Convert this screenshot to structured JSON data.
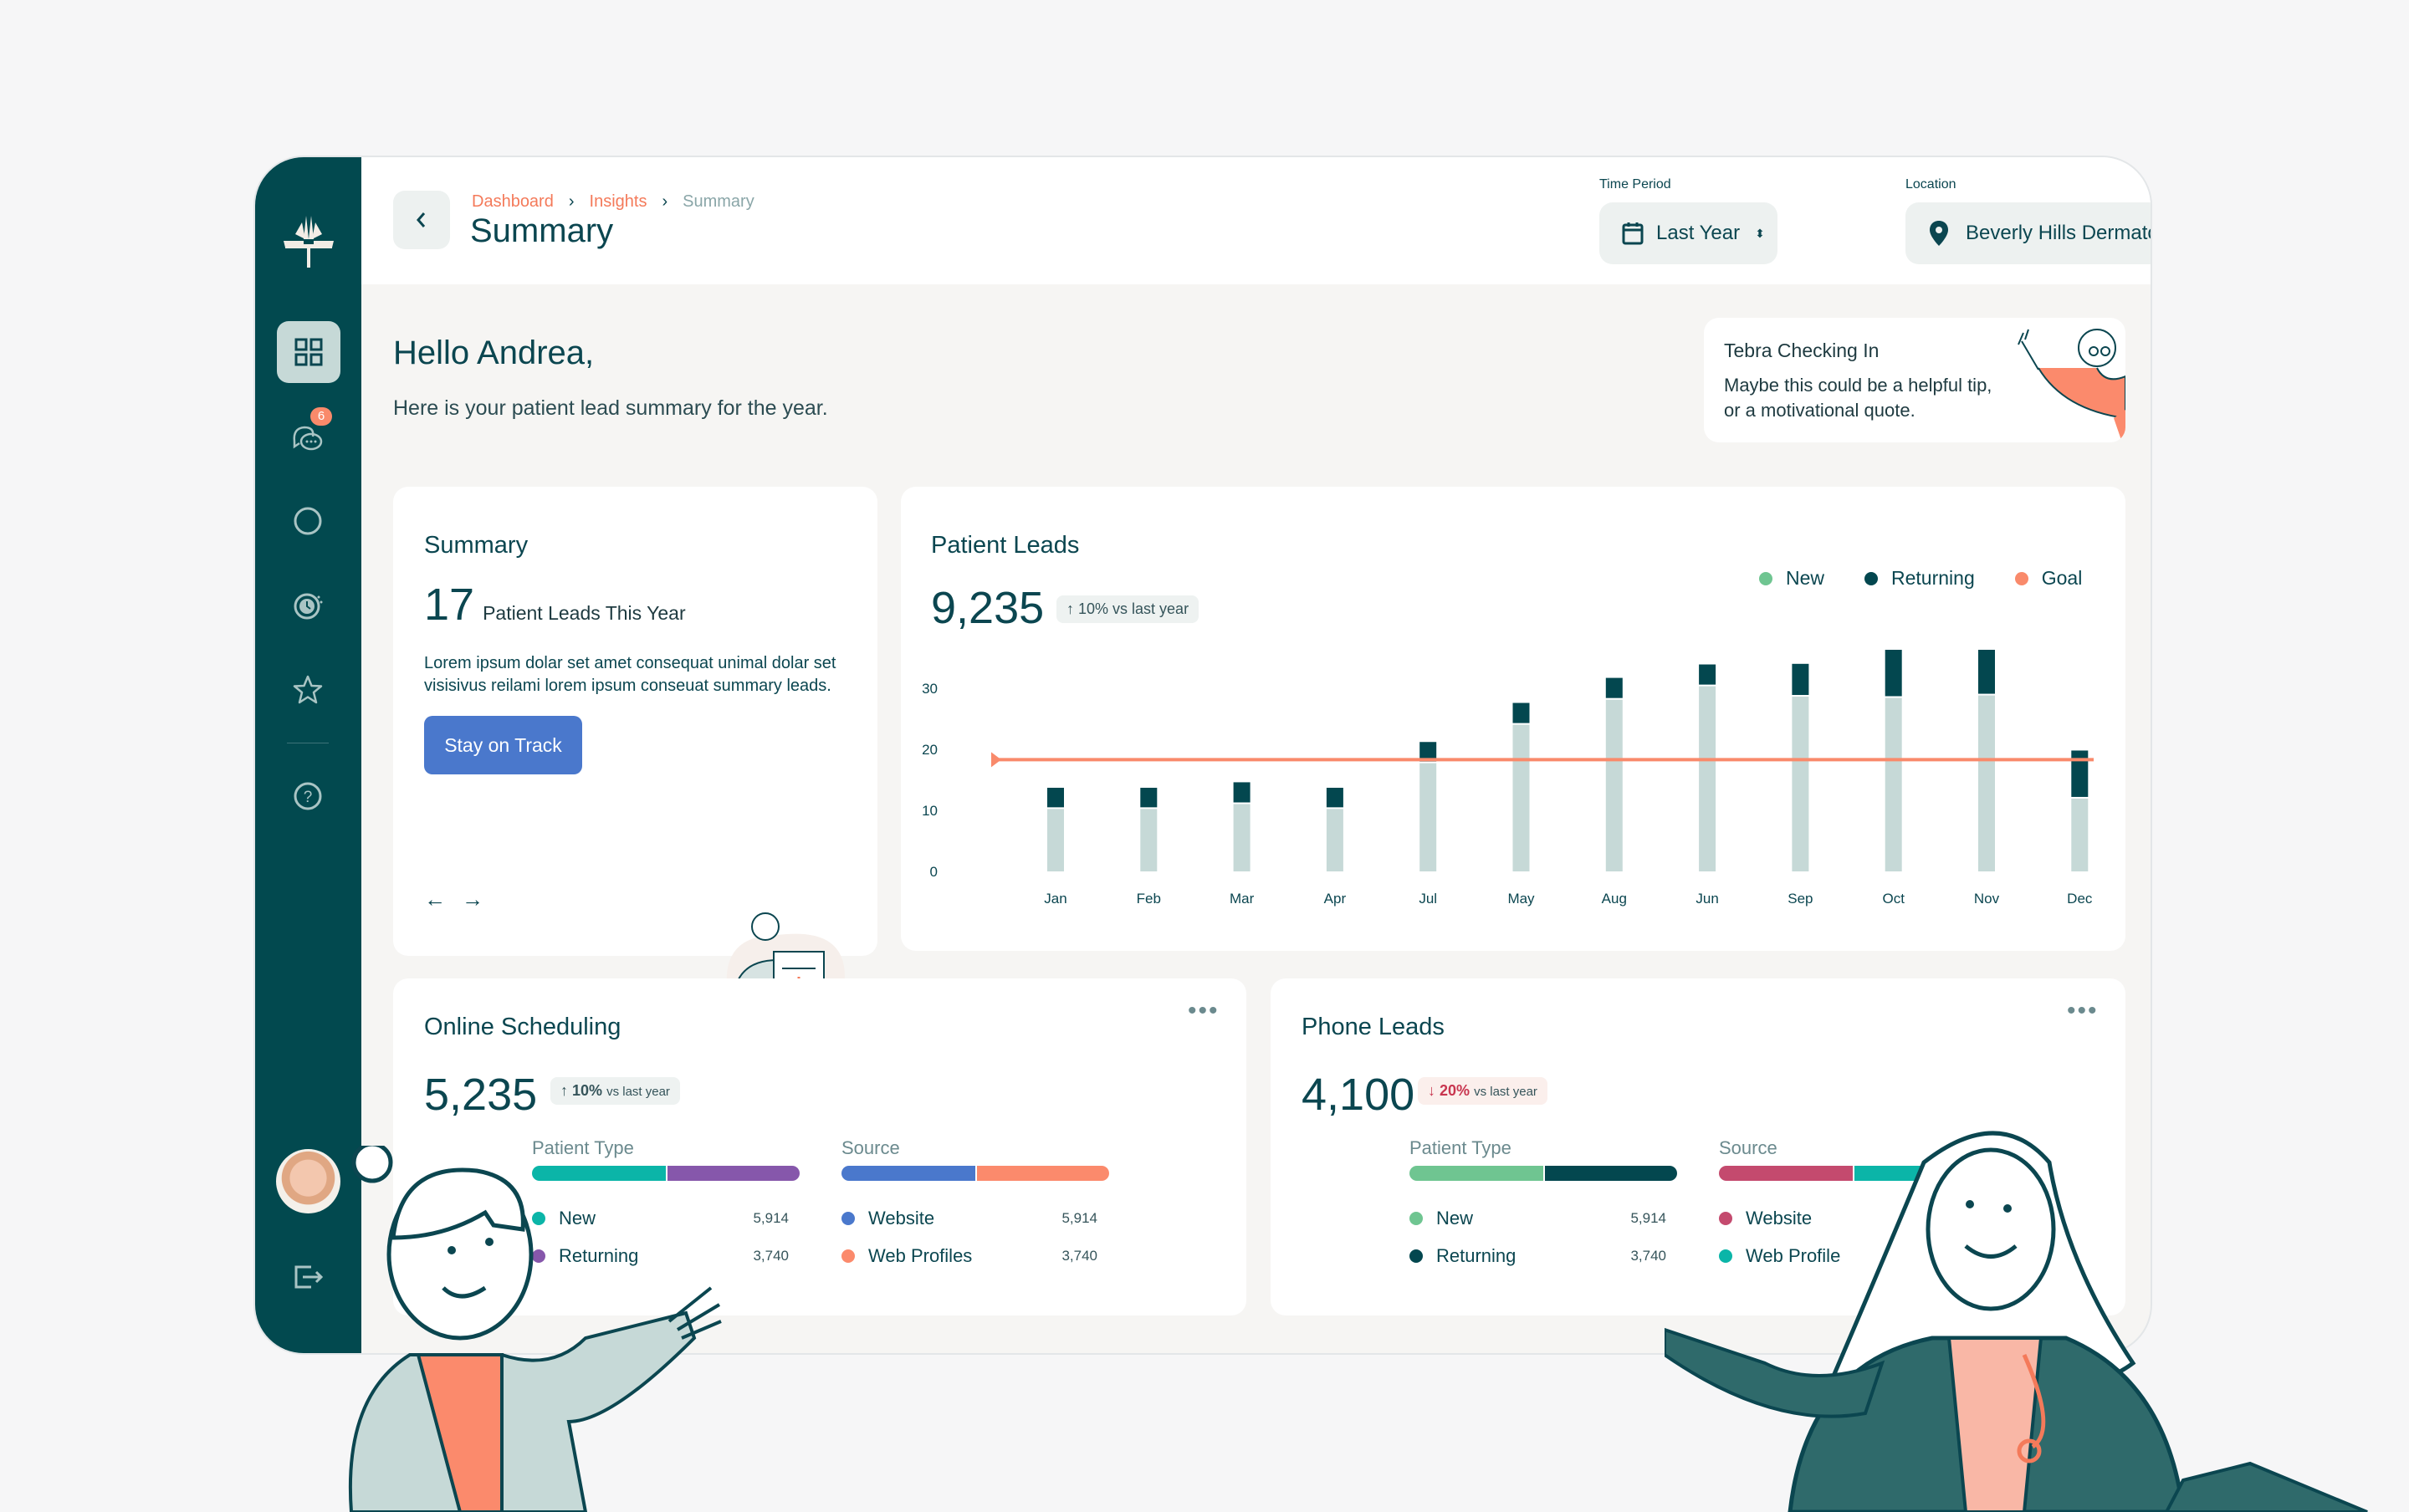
{
  "breadcrumb": [
    "Dashboard",
    "Insights",
    "Summary"
  ],
  "page_title": "Summary",
  "filters": {
    "time_label": "Time Period",
    "time_value": "Last Year",
    "location_label": "Location",
    "location_value": "Beverly Hills Dermatology"
  },
  "sidebar": {
    "badge": "6",
    "icons": [
      "logo",
      "dashboard-grid",
      "messages",
      "circle",
      "clock",
      "star",
      "help",
      "avatar",
      "logout"
    ]
  },
  "greeting": {
    "title": "Hello Andrea,",
    "subtitle": "Here is your patient lead summary for the year."
  },
  "tip": {
    "title": "Tebra Checking In",
    "line1": "Maybe this could be a helpful tip,",
    "line2": "or a motivational quote."
  },
  "summary": {
    "title": "Summary",
    "count": "17",
    "count_label": "Patient Leads This Year",
    "body": "Lorem ipsum dolar set amet consequat unimal dolar set visisivus reilami lorem ipsum conseuat summary leads.",
    "button": "Stay on Track"
  },
  "patient_leads": {
    "title": "Patient Leads",
    "total": "9,235",
    "change": "↑ 10% vs last year",
    "legend": [
      {
        "label": "New",
        "color": "#6fc591"
      },
      {
        "label": "Returning",
        "color": "#03474f"
      },
      {
        "label": "Goal",
        "color": "#f98a6b"
      }
    ]
  },
  "chart_data": {
    "type": "bar",
    "stacked": true,
    "categories": [
      "Jan",
      "Feb",
      "Mar",
      "Apr",
      "Jul",
      "May",
      "Aug",
      "Jun",
      "Sep",
      "Oct",
      "Nov",
      "Dec"
    ],
    "series": [
      {
        "name": "New",
        "color": "#c6d9d7",
        "values": [
          10.5,
          10.5,
          11.3,
          10.5,
          18,
          24.3,
          28.4,
          30.6,
          28.9,
          28.7,
          29.1,
          12.2
        ]
      },
      {
        "name": "Returning",
        "color": "#03474f",
        "values": [
          3.2,
          3.2,
          3.3,
          3.2,
          3.2,
          3.3,
          3.3,
          3.3,
          5.1,
          7.6,
          7.2,
          7.6
        ]
      }
    ],
    "goal": {
      "name": "Goal",
      "value": 18.3,
      "color": "#f98a6b"
    },
    "yticks": [
      0,
      10,
      20,
      30
    ],
    "ylim": [
      0,
      37
    ],
    "grid": false,
    "legend": "top-right"
  },
  "online": {
    "title": "Online Scheduling",
    "total": "5,235",
    "change_arrow": "↑",
    "change_pct": "10%",
    "change_text": "vs last year",
    "type_label": "Patient Type",
    "source_label": "Source",
    "type_items": [
      {
        "label": "New",
        "value": "5,914",
        "color": "#0bb5a8"
      },
      {
        "label": "Returning",
        "value": "3,740",
        "color": "#8657ab"
      }
    ],
    "source_items": [
      {
        "label": "Website",
        "value": "5,914",
        "color": "#4a78cc"
      },
      {
        "label": "Web Profiles",
        "value": "3,740",
        "color": "#fb8a6c"
      }
    ]
  },
  "phone": {
    "title": "Phone Leads",
    "total": "4,100",
    "change_arrow": "↓",
    "change_pct": "20%",
    "change_text": "vs last year",
    "type_label": "Patient Type",
    "source_label": "Source",
    "type_items": [
      {
        "label": "New",
        "value": "5,914",
        "color": "#6fc591"
      },
      {
        "label": "Returning",
        "value": "3,740",
        "color": "#03474f"
      }
    ],
    "source_items": [
      {
        "label": "Website",
        "color": "#c44a6e"
      },
      {
        "label": "Web Profile",
        "color": "#0bb5a8"
      }
    ]
  }
}
